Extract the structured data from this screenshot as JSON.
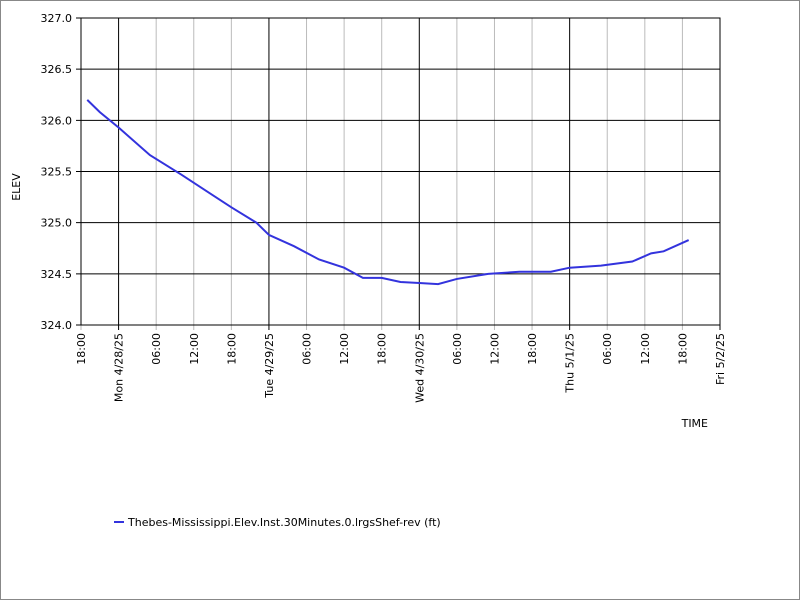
{
  "chart_data": {
    "type": "line",
    "ylabel": "ELEV",
    "xlabel": "TIME",
    "x": [
      1,
      3,
      6,
      11,
      16,
      21,
      24,
      28,
      30,
      34,
      38,
      42,
      45,
      48,
      51,
      54,
      57,
      60,
      65,
      70,
      75,
      78,
      83,
      88,
      91,
      93,
      97
    ],
    "series": [
      {
        "name": "Thebes-Mississippi.Elev.Inst.30Minutes.0.lrgsShef-rev (ft)",
        "color": "#3333dd",
        "values": [
          326.2,
          326.08,
          325.93,
          325.66,
          325.47,
          325.27,
          325.15,
          325.0,
          324.88,
          324.77,
          324.64,
          324.56,
          324.46,
          324.46,
          324.42,
          324.41,
          324.4,
          324.45,
          324.5,
          324.52,
          324.52,
          324.56,
          324.58,
          324.62,
          324.7,
          324.72,
          324.83
        ]
      }
    ],
    "xlim": [
      0,
      102
    ],
    "xticks": [
      {
        "value": 0,
        "label": "18:00"
      },
      {
        "value": 6,
        "label": "Mon 4/28/25"
      },
      {
        "value": 12,
        "label": "06:00"
      },
      {
        "value": 18,
        "label": "12:00"
      },
      {
        "value": 24,
        "label": "18:00"
      },
      {
        "value": 30,
        "label": "Tue 4/29/25"
      },
      {
        "value": 36,
        "label": "06:00"
      },
      {
        "value": 42,
        "label": "12:00"
      },
      {
        "value": 48,
        "label": "18:00"
      },
      {
        "value": 54,
        "label": "Wed 4/30/25"
      },
      {
        "value": 60,
        "label": "06:00"
      },
      {
        "value": 66,
        "label": "12:00"
      },
      {
        "value": 72,
        "label": "18:00"
      },
      {
        "value": 78,
        "label": "Thu 5/1/25"
      },
      {
        "value": 84,
        "label": "06:00"
      },
      {
        "value": 90,
        "label": "12:00"
      },
      {
        "value": 96,
        "label": "18:00"
      },
      {
        "value": 102,
        "label": "Fri 5/2/25"
      }
    ],
    "ylim": [
      324,
      327
    ],
    "yticks": [
      {
        "value": 324,
        "label": "324.0"
      },
      {
        "value": 324.5,
        "label": "324.5"
      },
      {
        "value": 325,
        "label": "325.0"
      },
      {
        "value": 325.5,
        "label": "325.5"
      },
      {
        "value": 326,
        "label": "326.0"
      },
      {
        "value": 326.5,
        "label": "326.5"
      },
      {
        "value": 327,
        "label": "327.0"
      }
    ],
    "grid": true
  }
}
